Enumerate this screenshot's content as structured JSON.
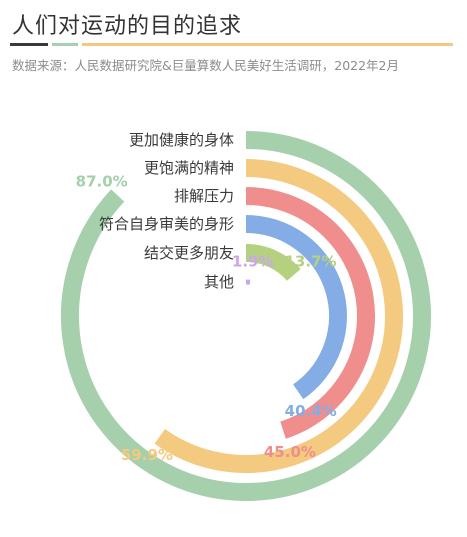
{
  "header": {
    "title": "人们对运动的目的追求",
    "source": "数据来源：人民数据研究院&巨量算数人民美好生活调研，2022年2月"
  },
  "colors": {
    "rule": [
      "#3a3a3a",
      "#a6d0b4",
      "#f2c97e"
    ]
  },
  "chart_data": {
    "type": "radial-bar",
    "title": "人们对运动的目的追求",
    "unit": "%",
    "max": 100,
    "categories": [
      "更加健康的身体",
      "更饱满的精神",
      "排解压力",
      "符合自身审美的身形",
      "结交更多朋友",
      "其他"
    ],
    "values": [
      87.0,
      59.9,
      45.0,
      40.4,
      13.7,
      1.9
    ],
    "value_labels": [
      "87.0%",
      "59.9%",
      "45.0%",
      "40.4%",
      "13.7%",
      "1.9%"
    ],
    "colors": [
      "#a6cfac",
      "#f3ca7f",
      "#f08e8e",
      "#84ade6",
      "#b5d17f",
      "#c8a8e6"
    ]
  }
}
